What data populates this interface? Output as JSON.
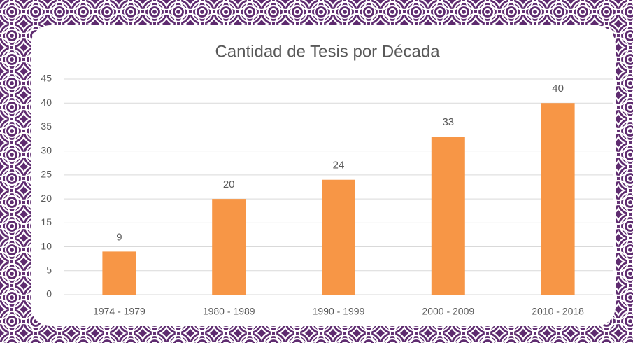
{
  "chart_data": {
    "type": "bar",
    "title": "Cantidad de Tesis por Década",
    "categories": [
      "1974 - 1979",
      "1980 - 1989",
      "1990 - 1999",
      "2000 - 2009",
      "2010 - 2018"
    ],
    "values": [
      9,
      20,
      24,
      33,
      40
    ],
    "color": "#f79646",
    "ylim": [
      0,
      45
    ],
    "yticks": [
      0,
      5,
      10,
      15,
      20,
      25,
      30,
      35,
      40,
      45
    ],
    "grid": true
  }
}
